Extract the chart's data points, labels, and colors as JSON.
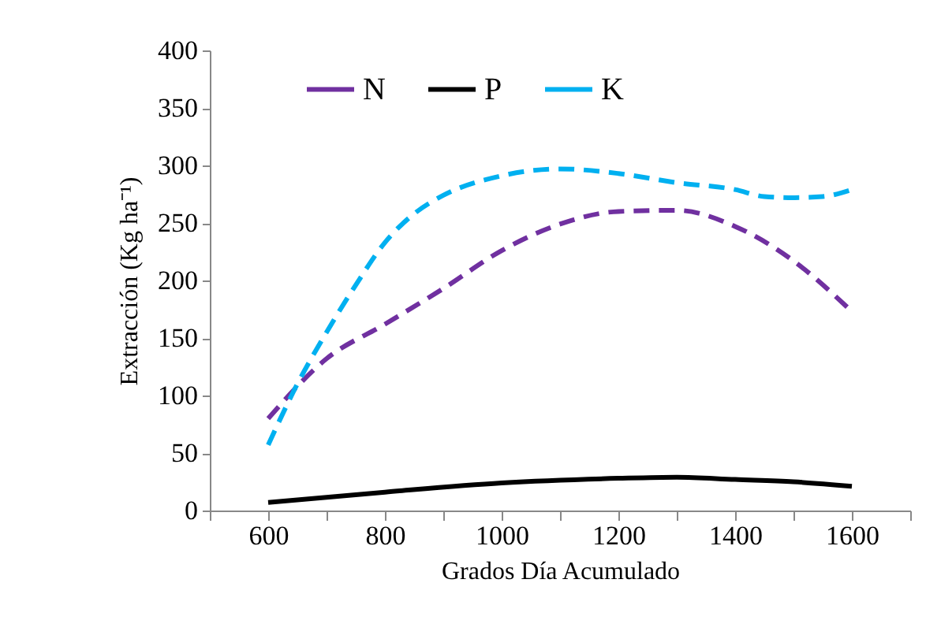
{
  "chart_data": {
    "type": "line",
    "xlabel": "Grados Día Acumulado",
    "ylabel": "Extracción (Kg ha⁻¹)",
    "xlim": [
      500,
      1700
    ],
    "xticks": [
      {
        "value": 500,
        "label": null
      },
      600,
      {
        "value": 700,
        "label": null
      },
      800,
      {
        "value": 900,
        "label": null
      },
      1000,
      {
        "value": 1100,
        "label": null
      },
      1200,
      {
        "value": 1300,
        "label": null
      },
      1400,
      {
        "value": 1500,
        "label": null
      },
      1600,
      {
        "value": 1700,
        "label": null
      }
    ],
    "ylim": [
      0,
      400
    ],
    "yticks": [
      0,
      50,
      100,
      150,
      200,
      250,
      300,
      350,
      400
    ],
    "legend": "top",
    "series": [
      {
        "name": "N",
        "color": "#7030a0",
        "line_style": "dashed",
        "x": [
          600,
          700,
          800,
          900,
          1000,
          1100,
          1200,
          1300,
          1400,
          1500,
          1600
        ],
        "values": [
          80,
          132,
          162,
          193,
          226,
          249,
          260,
          261,
          247,
          217,
          173
        ]
      },
      {
        "name": "P",
        "color": "#000000",
        "line_style": "solid",
        "x": [
          600,
          800,
          1000,
          1200,
          1300,
          1400,
          1500,
          1600
        ],
        "values": [
          7,
          16,
          24,
          28,
          29,
          27,
          25,
          21
        ]
      },
      {
        "name": "K",
        "color": "#00b0f0",
        "line_style": "dashed",
        "x": [
          600,
          650,
          700,
          750,
          800,
          850,
          900,
          1000,
          1100,
          1200,
          1300,
          1400,
          1450,
          1500,
          1550,
          1600
        ],
        "values": [
          57,
          110,
          155,
          196,
          233,
          258,
          274,
          291,
          297,
          293,
          285,
          279,
          273,
          272,
          273,
          279
        ]
      }
    ]
  }
}
